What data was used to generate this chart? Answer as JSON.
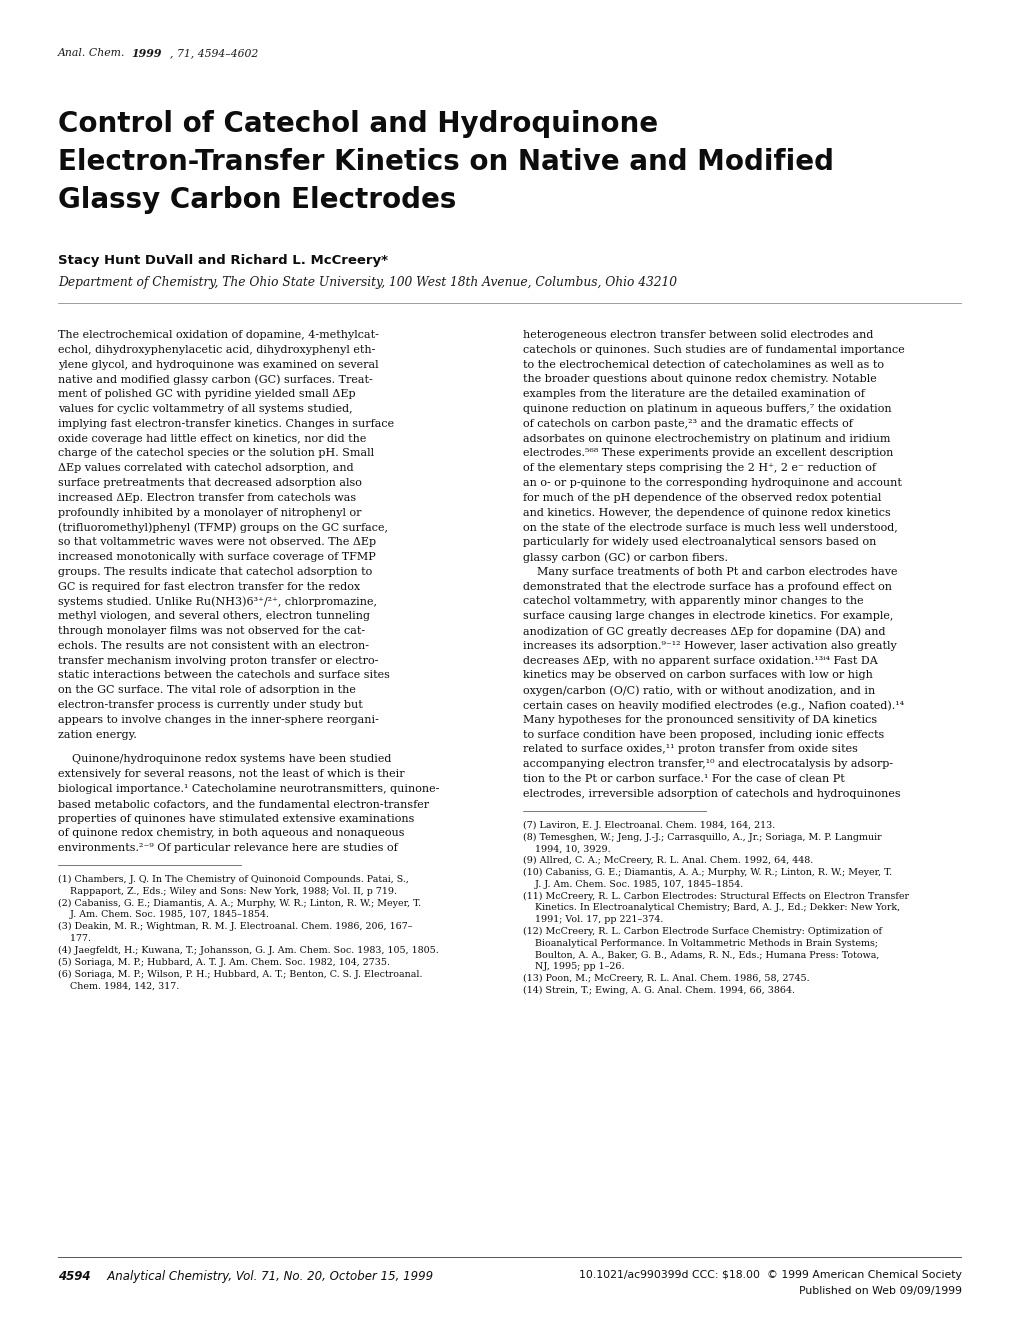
{
  "background_color": "#ffffff",
  "page_width": 10.2,
  "page_height": 13.2,
  "journal_ref_italic": "Anal. Chem. ",
  "journal_ref_bold": "1999",
  "journal_ref_rest": ", 71, 4594–4602",
  "title_line1": "Control of Catechol and Hydroquinone",
  "title_line2": "Electron-Transfer Kinetics on Native and Modified",
  "title_line3": "Glassy Carbon Electrodes",
  "authors": "Stacy Hunt DuVall and Richard L. McCreery*",
  "affiliation": "Department of Chemistry, The Ohio State University, 100 West 18th Avenue, Columbus, Ohio 43210",
  "col1_lines": [
    "The electrochemical oxidation of dopamine, 4-methylcat-",
    "echol, dihydroxyphenylacetic acid, dihydroxyphenyl eth-",
    "ylene glycol, and hydroquinone was examined on several",
    "native and modified glassy carbon (GC) surfaces. Treat-",
    "ment of polished GC with pyridine yielded small ΔEp",
    "values for cyclic voltammetry of all systems studied,",
    "implying fast electron-transfer kinetics. Changes in surface",
    "oxide coverage had little effect on kinetics, nor did the",
    "charge of the catechol species or the solution pH. Small",
    "ΔEp values correlated with catechol adsorption, and",
    "surface pretreatments that decreased adsorption also",
    "increased ΔEp. Electron transfer from catechols was",
    "profoundly inhibited by a monolayer of nitrophenyl or",
    "(trifluoromethyl)phenyl (TFMP) groups on the GC surface,",
    "so that voltammetric waves were not observed. The ΔEp",
    "increased monotonically with surface coverage of TFMP",
    "groups. The results indicate that catechol adsorption to",
    "GC is required for fast electron transfer for the redox",
    "systems studied. Unlike Ru(NH3)6³⁺/²⁺, chlorpromazine,",
    "methyl viologen, and several others, electron tunneling",
    "through monolayer films was not observed for the cat-",
    "echols. The results are not consistent with an electron-",
    "transfer mechanism involving proton transfer or electro-",
    "static interactions between the catechols and surface sites",
    "on the GC surface. The vital role of adsorption in the",
    "electron-transfer process is currently under study but",
    "appears to involve changes in the inner-sphere reorgani-",
    "zation energy."
  ],
  "col1_para2_lines": [
    "    Quinone/hydroquinone redox systems have been studied",
    "extensively for several reasons, not the least of which is their",
    "biological importance.¹ Catecholamine neurotransmitters, quinone-",
    "based metabolic cofactors, and the fundamental electron-transfer",
    "properties of quinones have stimulated extensive examinations",
    "of quinone redox chemistry, in both aqueous and nonaqueous",
    "environments.²⁻⁹ Of particular relevance here are studies of"
  ],
  "col2_lines": [
    "heterogeneous electron transfer between solid electrodes and",
    "catechols or quinones. Such studies are of fundamental importance",
    "to the electrochemical detection of catecholamines as well as to",
    "the broader questions about quinone redox chemistry. Notable",
    "examples from the literature are the detailed examination of",
    "quinone reduction on platinum in aqueous buffers,⁷ the oxidation",
    "of catechols on carbon paste,²³ and the dramatic effects of",
    "adsorbates on quinone electrochemistry on platinum and iridium",
    "electrodes.⁵⁶⁸ These experiments provide an excellent description",
    "of the elementary steps comprising the 2 H⁺, 2 e⁻ reduction of",
    "an o- or p-quinone to the corresponding hydroquinone and account",
    "for much of the pH dependence of the observed redox potential",
    "and kinetics. However, the dependence of quinone redox kinetics",
    "on the state of the electrode surface is much less well understood,",
    "particularly for widely used electroanalytical sensors based on",
    "glassy carbon (GC) or carbon fibers.",
    "    Many surface treatments of both Pt and carbon electrodes have",
    "demonstrated that the electrode surface has a profound effect on",
    "catechol voltammetry, with apparently minor changes to the",
    "surface causing large changes in electrode kinetics. For example,",
    "anodization of GC greatly decreases ΔEp for dopamine (DA) and",
    "increases its adsorption.⁹⁻¹² However, laser activation also greatly",
    "decreases ΔEp, with no apparent surface oxidation.¹³ⁱ⁴ Fast DA",
    "kinetics may be observed on carbon surfaces with low or high",
    "oxygen/carbon (O/C) ratio, with or without anodization, and in",
    "certain cases on heavily modified electrodes (e.g., Nafion coated).¹⁴",
    "Many hypotheses for the pronounced sensitivity of DA kinetics",
    "to surface condition have been proposed, including ionic effects",
    "related to surface oxides,¹¹ proton transfer from oxide sites",
    "accompanying electron transfer,¹⁰ and electrocatalysis by adsorp-",
    "tion to the Pt or carbon surface.¹ For the case of clean Pt",
    "electrodes, irreversible adsorption of catechols and hydroquinones"
  ],
  "footnotes_left": [
    "(1) Chambers, J. Q. In The Chemistry of Quinonoid Compounds. Patai, S.,",
    "    Rappaport, Z., Eds.; Wiley and Sons: New York, 1988; Vol. II, p 719.",
    "(2) Cabaniss, G. E.; Diamantis, A. A.; Murphy, W. R.; Linton, R. W.; Meyer, T.",
    "    J. Am. Chem. Soc. 1985, 107, 1845–1854.",
    "(3) Deakin, M. R.; Wightman, R. M. J. Electroanal. Chem. 1986, 206, 167–",
    "    177.",
    "(4) Jaegfeldt, H.; Kuwana, T.; Johansson, G. J. Am. Chem. Soc. 1983, 105, 1805.",
    "(5) Soriaga, M. P.; Hubbard, A. T. J. Am. Chem. Soc. 1982, 104, 2735.",
    "(6) Soriaga, M. P.; Wilson, P. H.; Hubbard, A. T.; Benton, C. S. J. Electroanal.",
    "    Chem. 1984, 142, 317."
  ],
  "footnotes_right": [
    "(7) Laviron, E. J. Electroanal. Chem. 1984, 164, 213.",
    "(8) Temesghen, W.; Jeng, J.-J.; Carrasquillo, A., Jr.; Soriaga, M. P. Langmuir",
    "    1994, 10, 3929.",
    "(9) Allred, C. A.; McCreery, R. L. Anal. Chem. 1992, 64, 448.",
    "(10) Cabaniss, G. E.; Diamantis, A. A.; Murphy, W. R.; Linton, R. W.; Meyer, T.",
    "    J. J. Am. Chem. Soc. 1985, 107, 1845–1854.",
    "(11) McCreery, R. L. Carbon Electrodes: Structural Effects on Electron Transfer",
    "    Kinetics. In Electroanalytical Chemistry; Bard, A. J., Ed.; Dekker: New York,",
    "    1991; Vol. 17, pp 221–374.",
    "(12) McCreery, R. L. Carbon Electrode Surface Chemistry: Optimization of",
    "    Bioanalytical Performance. In Voltammetric Methods in Brain Systems;",
    "    Boulton, A. A., Baker, G. B., Adams, R. N., Eds.; Humana Press: Totowa,",
    "    NJ, 1995; pp 1–26.",
    "(13) Poon, M.; McCreery, R. L. Anal. Chem. 1986, 58, 2745.",
    "(14) Strein, T.; Ewing, A. G. Anal. Chem. 1994, 66, 3864."
  ],
  "footer_left_bold": "4594",
  "footer_left_rest": "   Analytical Chemistry, Vol. 71, No. 20, October 15, 1999",
  "footer_right_line1": "10.1021/ac990399d CCC: $18.00  © 1999 American Chemical Society",
  "footer_right_line2": "Published on Web 09/09/1999"
}
